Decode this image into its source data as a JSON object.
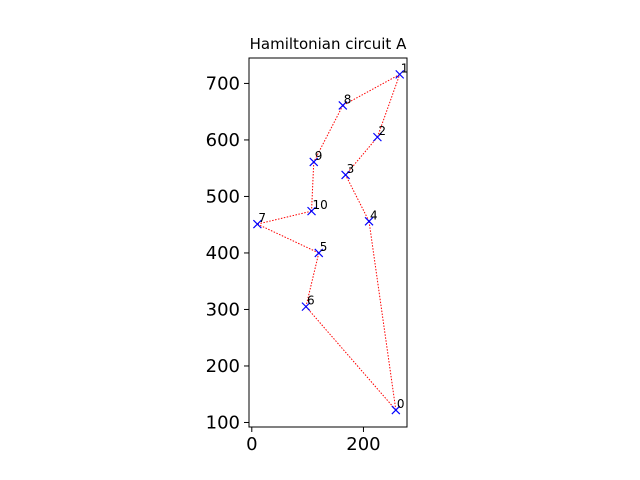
{
  "chart_data": {
    "type": "scatter",
    "title": "Hamiltonian circuit A",
    "xlabel": "",
    "ylabel": "",
    "xlim": [
      -5,
      278
    ],
    "ylim": [
      92,
      745
    ],
    "xticks": [
      0,
      200
    ],
    "yticks": [
      100,
      200,
      300,
      400,
      500,
      600,
      700
    ],
    "grid": false,
    "points": [
      {
        "label": "0",
        "x": 258,
        "y": 122
      },
      {
        "label": "1",
        "x": 265,
        "y": 716
      },
      {
        "label": "2",
        "x": 225,
        "y": 605
      },
      {
        "label": "3",
        "x": 168,
        "y": 538
      },
      {
        "label": "4",
        "x": 210,
        "y": 456
      },
      {
        "label": "5",
        "x": 120,
        "y": 400
      },
      {
        "label": "6",
        "x": 97,
        "y": 305
      },
      {
        "label": "7",
        "x": 10,
        "y": 451
      },
      {
        "label": "8",
        "x": 163,
        "y": 661
      },
      {
        "label": "9",
        "x": 111,
        "y": 561
      },
      {
        "label": "10",
        "x": 107,
        "y": 474
      }
    ],
    "tour": [
      0,
      4,
      3,
      2,
      1,
      8,
      9,
      10,
      7,
      5,
      6,
      0
    ],
    "marker_color": "#0000ff",
    "line_color": "#ff0000"
  }
}
